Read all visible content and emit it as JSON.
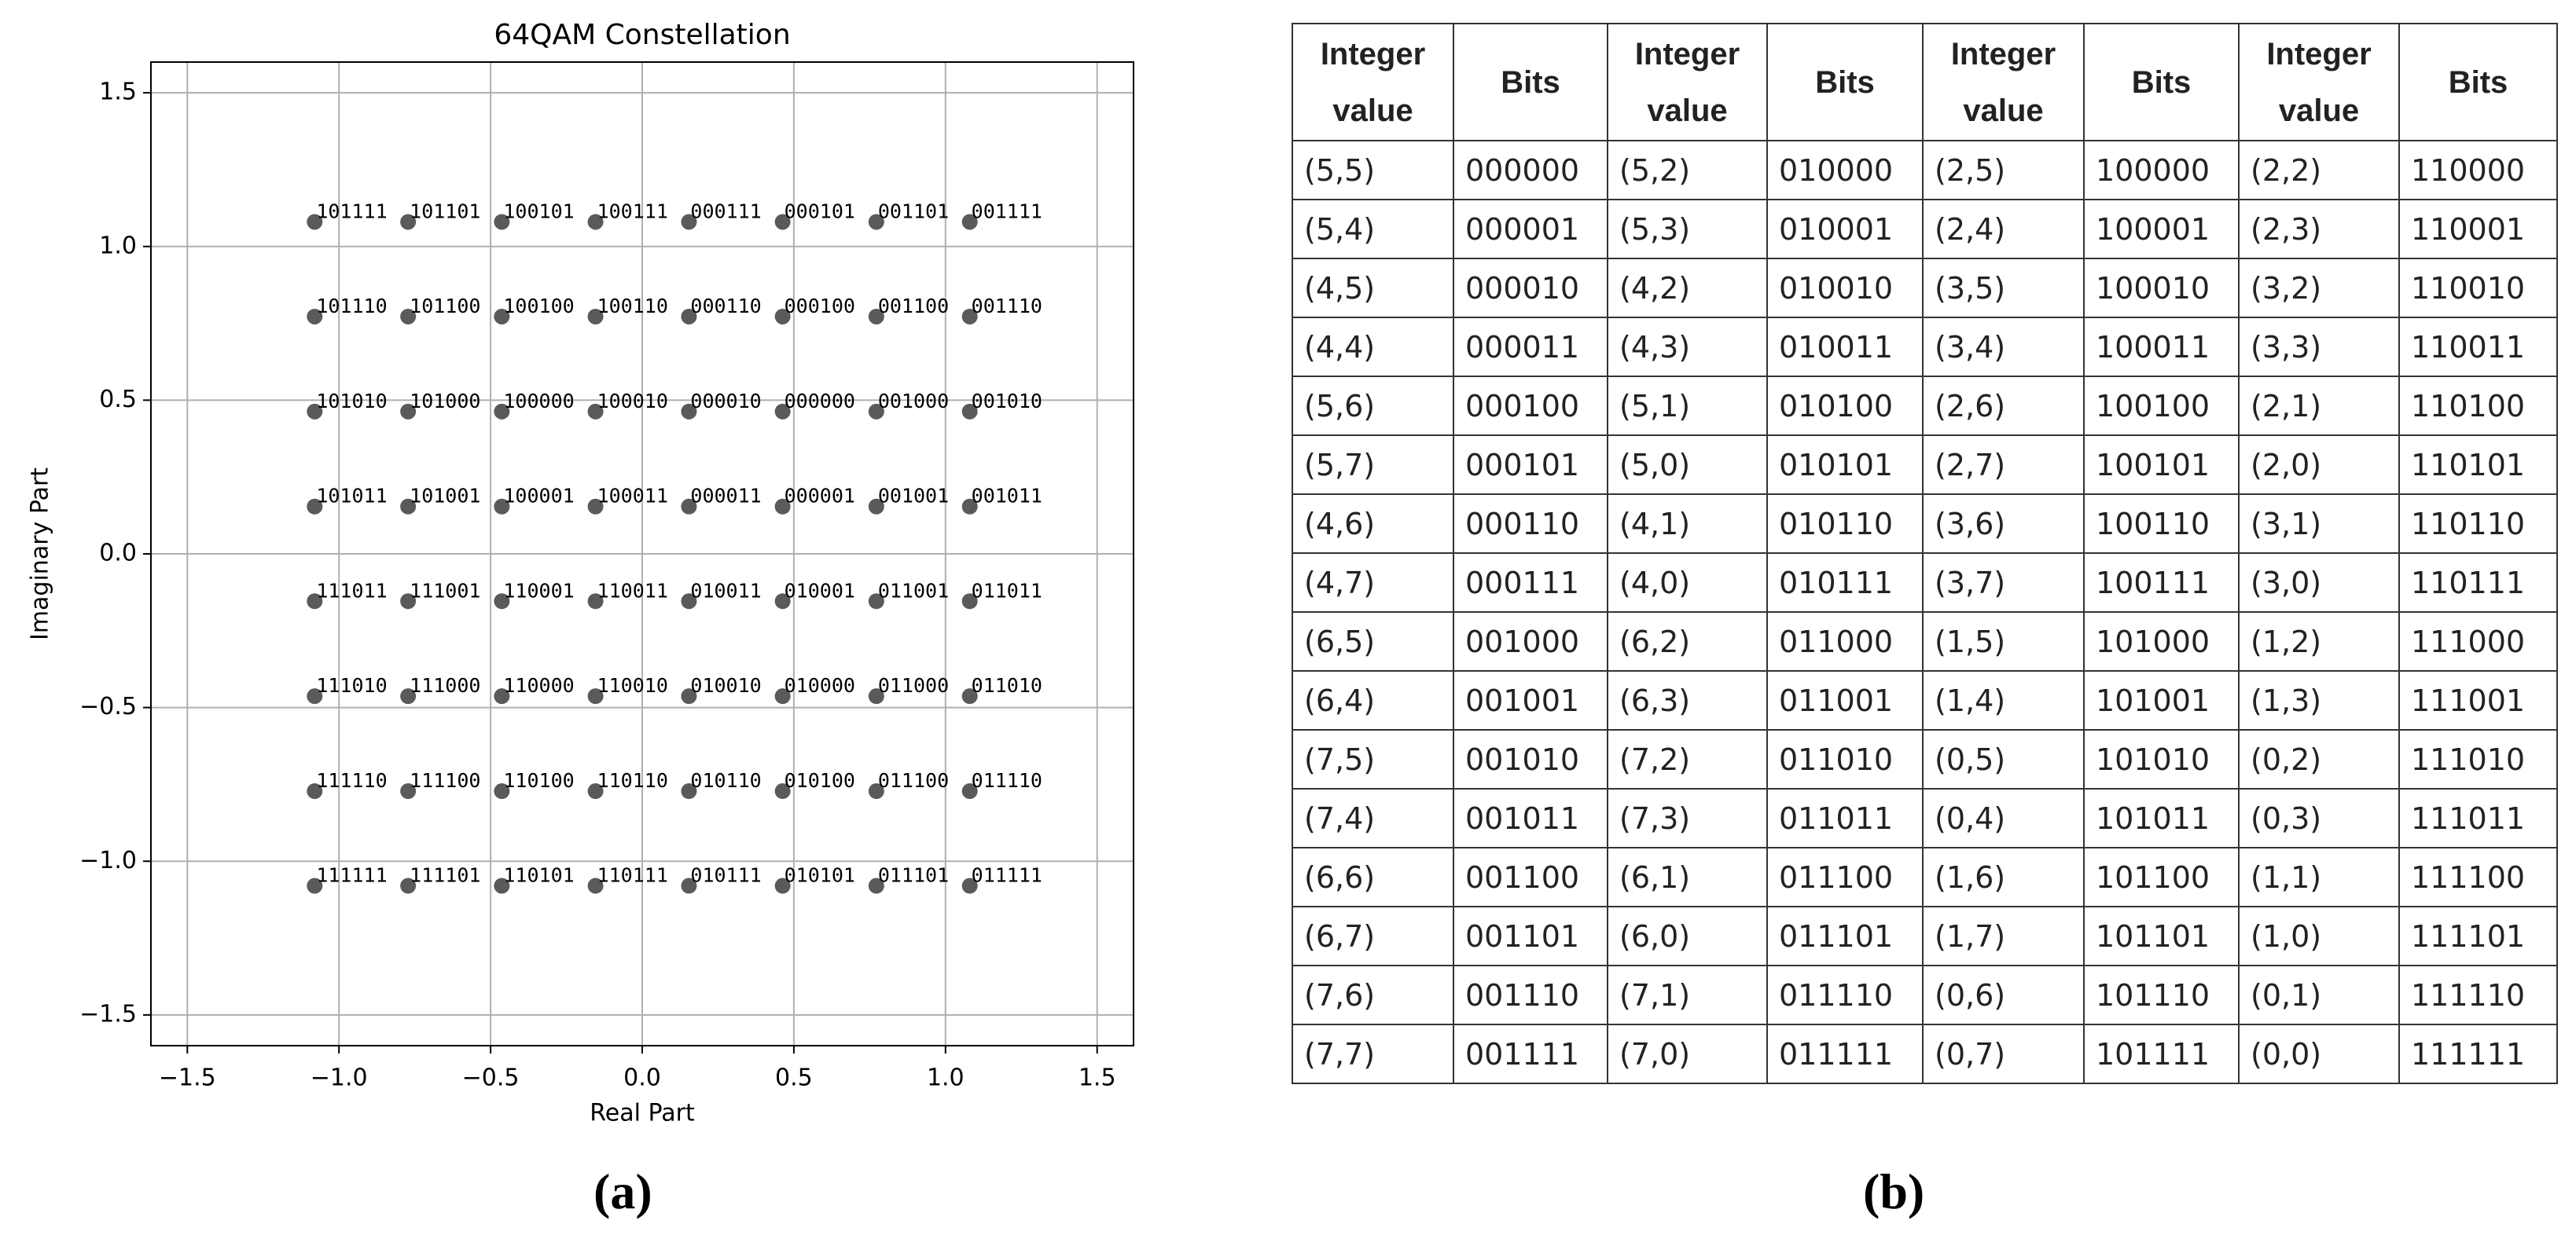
{
  "chart_data": {
    "type": "scatter",
    "title": "64QAM Constellation",
    "x_label": "Real Part",
    "y_label": "Imaginary Part",
    "x": [
      -1.08,
      -0.772,
      -0.463,
      -0.154,
      0.154,
      0.463,
      0.772,
      1.08,
      -1.08,
      -0.772,
      -0.463,
      -0.154,
      0.154,
      0.463,
      0.772,
      1.08,
      -1.08,
      -0.772,
      -0.463,
      -0.154,
      0.154,
      0.463,
      0.772,
      1.08,
      -1.08,
      -0.772,
      -0.463,
      -0.154,
      0.154,
      0.463,
      0.772,
      1.08,
      -1.08,
      -0.772,
      -0.463,
      -0.154,
      0.154,
      0.463,
      0.772,
      1.08,
      -1.08,
      -0.772,
      -0.463,
      -0.154,
      0.154,
      0.463,
      0.772,
      1.08,
      -1.08,
      -0.772,
      -0.463,
      -0.154,
      0.154,
      0.463,
      0.772,
      1.08,
      -1.08,
      -0.772,
      -0.463,
      -0.154,
      0.154,
      0.463,
      0.772,
      1.08
    ],
    "values": [
      1.08,
      1.08,
      1.08,
      1.08,
      1.08,
      1.08,
      1.08,
      1.08,
      0.772,
      0.772,
      0.772,
      0.772,
      0.772,
      0.772,
      0.772,
      0.772,
      0.463,
      0.463,
      0.463,
      0.463,
      0.463,
      0.463,
      0.463,
      0.463,
      0.154,
      0.154,
      0.154,
      0.154,
      0.154,
      0.154,
      0.154,
      0.154,
      -0.154,
      -0.154,
      -0.154,
      -0.154,
      -0.154,
      -0.154,
      -0.154,
      -0.154,
      -0.463,
      -0.463,
      -0.463,
      -0.463,
      -0.463,
      -0.463,
      -0.463,
      -0.463,
      -0.772,
      -0.772,
      -0.772,
      -0.772,
      -0.772,
      -0.772,
      -0.772,
      -0.772,
      -1.08,
      -1.08,
      -1.08,
      -1.08,
      -1.08,
      -1.08,
      -1.08,
      -1.08
    ],
    "point_labels": [
      "101111",
      "101101",
      "100101",
      "100111",
      "000111",
      "000101",
      "001101",
      "001111",
      "101110",
      "101100",
      "100100",
      "100110",
      "000110",
      "000100",
      "001100",
      "001110",
      "101010",
      "101000",
      "100000",
      "100010",
      "000010",
      "000000",
      "001000",
      "001010",
      "101011",
      "101001",
      "100001",
      "100011",
      "000011",
      "000001",
      "001001",
      "001011",
      "111011",
      "111001",
      "110001",
      "110011",
      "010011",
      "010001",
      "011001",
      "011011",
      "111010",
      "111000",
      "110000",
      "110010",
      "010010",
      "010000",
      "011000",
      "011010",
      "111110",
      "111100",
      "110100",
      "110110",
      "010110",
      "010100",
      "011100",
      "011110",
      "111111",
      "111101",
      "110101",
      "110111",
      "010111",
      "010101",
      "011101",
      "011111"
    ],
    "color": "#5a5a5a",
    "xlim": [
      -1.62,
      1.62
    ],
    "ylim": [
      -1.6,
      1.6
    ],
    "xticks": [
      {
        "value": -1.5,
        "label": "−1.5"
      },
      {
        "value": -1.0,
        "label": "−1.0"
      },
      {
        "value": -0.5,
        "label": "−0.5"
      },
      {
        "value": 0,
        "label": "0.0"
      },
      0.5,
      {
        "value": 1.0,
        "label": "1.0"
      },
      1.5
    ],
    "yticks": [
      {
        "value": -1.5,
        "label": "−1.5"
      },
      {
        "value": -1.0,
        "label": "−1.0"
      },
      {
        "value": -0.5,
        "label": "−0.5"
      },
      {
        "value": 0,
        "label": "0.0"
      },
      0.5,
      {
        "value": 1.0,
        "label": "1.0"
      },
      1.5
    ],
    "grid": true
  },
  "table": {
    "header": [
      "Integer value",
      "Bits",
      "Integer value",
      "Bits",
      "Integer value",
      "Bits",
      "Integer value",
      "Bits"
    ],
    "rows": [
      [
        "(5,5)",
        "000000",
        "(5,2)",
        "010000",
        "(2,5)",
        "100000",
        "(2,2)",
        "110000"
      ],
      [
        "(5,4)",
        "000001",
        "(5,3)",
        "010001",
        "(2,4)",
        "100001",
        "(2,3)",
        "110001"
      ],
      [
        "(4,5)",
        "000010",
        "(4,2)",
        "010010",
        "(3,5)",
        "100010",
        "(3,2)",
        "110010"
      ],
      [
        "(4,4)",
        "000011",
        "(4,3)",
        "010011",
        "(3,4)",
        "100011",
        "(3,3)",
        "110011"
      ],
      [
        "(5,6)",
        "000100",
        "(5,1)",
        "010100",
        "(2,6)",
        "100100",
        "(2,1)",
        "110100"
      ],
      [
        "(5,7)",
        "000101",
        "(5,0)",
        "010101",
        "(2,7)",
        "100101",
        "(2,0)",
        "110101"
      ],
      [
        "(4,6)",
        "000110",
        "(4,1)",
        "010110",
        "(3,6)",
        "100110",
        "(3,1)",
        "110110"
      ],
      [
        "(4,7)",
        "000111",
        "(4,0)",
        "010111",
        "(3,7)",
        "100111",
        "(3,0)",
        "110111"
      ],
      [
        "(6,5)",
        "001000",
        "(6,2)",
        "011000",
        "(1,5)",
        "101000",
        "(1,2)",
        "111000"
      ],
      [
        "(6,4)",
        "001001",
        "(6,3)",
        "011001",
        "(1,4)",
        "101001",
        "(1,3)",
        "111001"
      ],
      [
        "(7,5)",
        "001010",
        "(7,2)",
        "011010",
        "(0,5)",
        "101010",
        "(0,2)",
        "111010"
      ],
      [
        "(7,4)",
        "001011",
        "(7,3)",
        "011011",
        "(0,4)",
        "101011",
        "(0,3)",
        "111011"
      ],
      [
        "(6,6)",
        "001100",
        "(6,1)",
        "011100",
        "(1,6)",
        "101100",
        "(1,1)",
        "111100"
      ],
      [
        "(6,7)",
        "001101",
        "(6,0)",
        "011101",
        "(1,7)",
        "101101",
        "(1,0)",
        "111101"
      ],
      [
        "(7,6)",
        "001110",
        "(7,1)",
        "011110",
        "(0,6)",
        "101110",
        "(0,1)",
        "111110"
      ],
      [
        "(7,7)",
        "001111",
        "(7,0)",
        "011111",
        "(0,7)",
        "101111",
        "(0,0)",
        "111111"
      ]
    ]
  },
  "captions": [
    "(a)",
    "(b)"
  ]
}
